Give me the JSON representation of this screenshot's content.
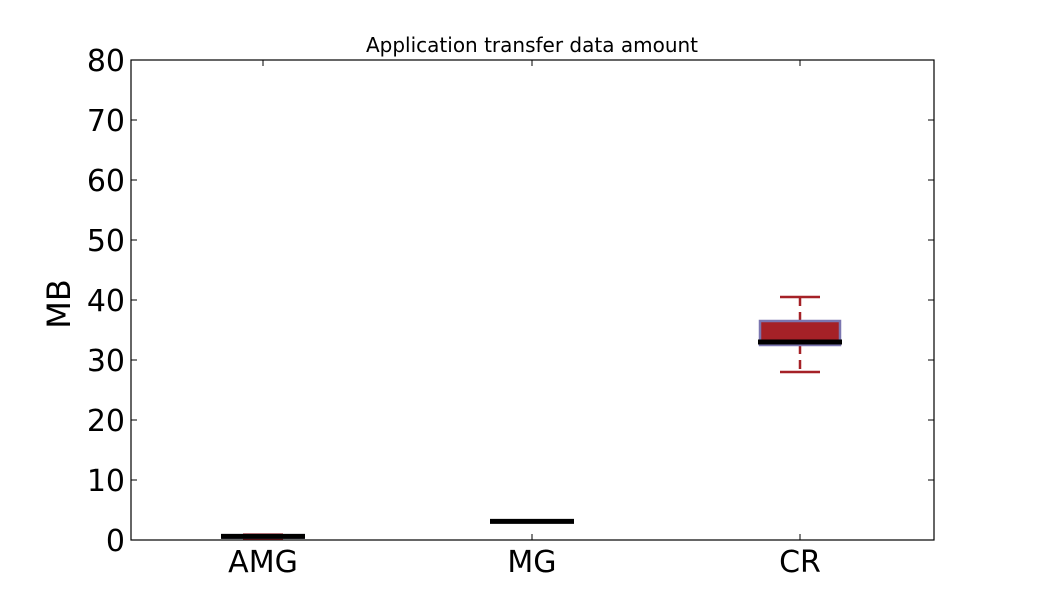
{
  "chart_data": {
    "type": "box",
    "title": "Application transfer data amount",
    "xlabel": "",
    "ylabel": "MB",
    "ylim": [
      0,
      80
    ],
    "yticks": [
      0,
      10,
      20,
      30,
      40,
      50,
      60,
      70,
      80
    ],
    "categories": [
      "AMG",
      "MG",
      "CR"
    ],
    "boxes": [
      {
        "category": "AMG",
        "whisker_low": 0.3,
        "q1": 0.4,
        "median": 0.6,
        "q3": 0.8,
        "whisker_high": 0.9
      },
      {
        "category": "MG",
        "whisker_low": 3.1,
        "q1": 3.1,
        "median": 3.1,
        "q3": 3.1,
        "whisker_high": 3.1
      },
      {
        "category": "CR",
        "whisker_low": 28.0,
        "q1": 32.5,
        "median": 33.0,
        "q3": 36.5,
        "whisker_high": 40.5
      }
    ],
    "grid": false,
    "colors": {
      "box_fill": "#a52127",
      "box_edge": "#7b76b0",
      "whisker": "#a52127",
      "median": "#000000"
    }
  }
}
